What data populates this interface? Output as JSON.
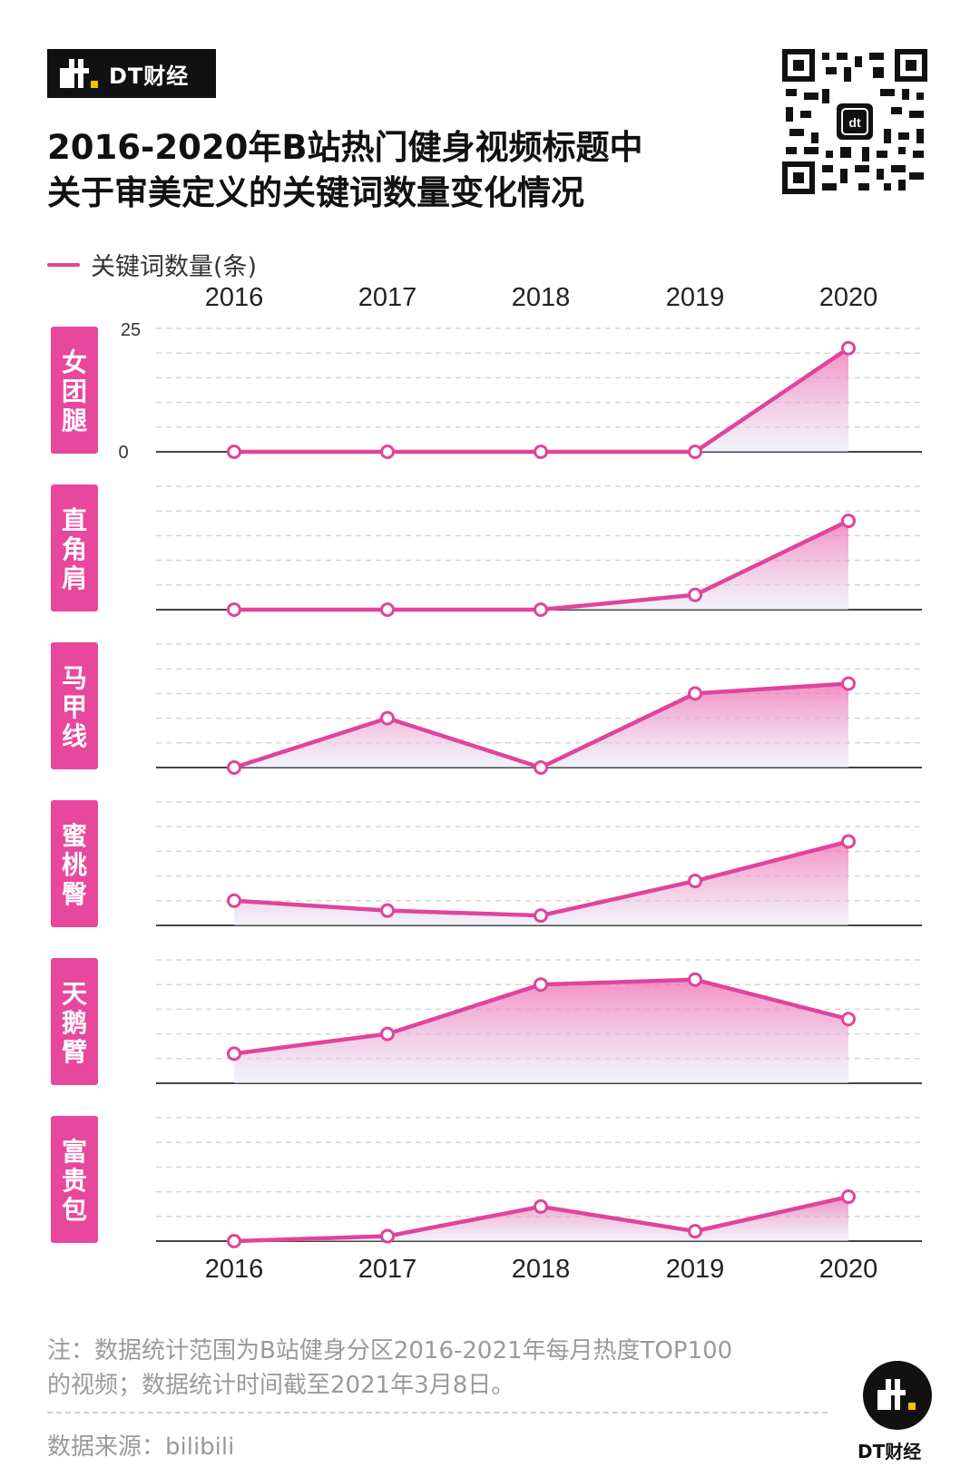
{
  "header": {
    "logo_text": "DT财经",
    "title_line1": "2016-2020年B站热门健身视频标题中",
    "title_line2": "关于审美定义的关键词数量变化情况"
  },
  "legend": {
    "label": "关键词数量(条)"
  },
  "colors": {
    "accent": "#e0449b",
    "label_bg": "#e8479e",
    "dark": "#111111",
    "grid": "#cccccc"
  },
  "chart_data": {
    "type": "area",
    "x": [
      "2016",
      "2017",
      "2018",
      "2019",
      "2020"
    ],
    "ylim": [
      0,
      25
    ],
    "y_ticks": [
      "25",
      "0"
    ],
    "grid": true,
    "series": [
      {
        "name": "女团腿",
        "values": [
          0,
          0,
          0,
          0,
          21
        ]
      },
      {
        "name": "直角肩",
        "values": [
          0,
          0,
          0,
          3,
          18
        ]
      },
      {
        "name": "马甲线",
        "values": [
          0,
          10,
          0,
          15,
          17
        ]
      },
      {
        "name": "蜜桃臀",
        "values": [
          5,
          3,
          2,
          9,
          17
        ]
      },
      {
        "name": "天鹅臂",
        "values": [
          6,
          10,
          20,
          21,
          13
        ]
      },
      {
        "name": "富贵包",
        "values": [
          0,
          1,
          7,
          2,
          9
        ]
      }
    ]
  },
  "footer": {
    "note_line1": "注：数据统计范围为B站健身分区2016-2021年每月热度TOP100",
    "note_line2": "的视频；数据统计时间截至2021年3月8日。",
    "source": "数据来源：bilibili",
    "brand": "DT财经"
  }
}
